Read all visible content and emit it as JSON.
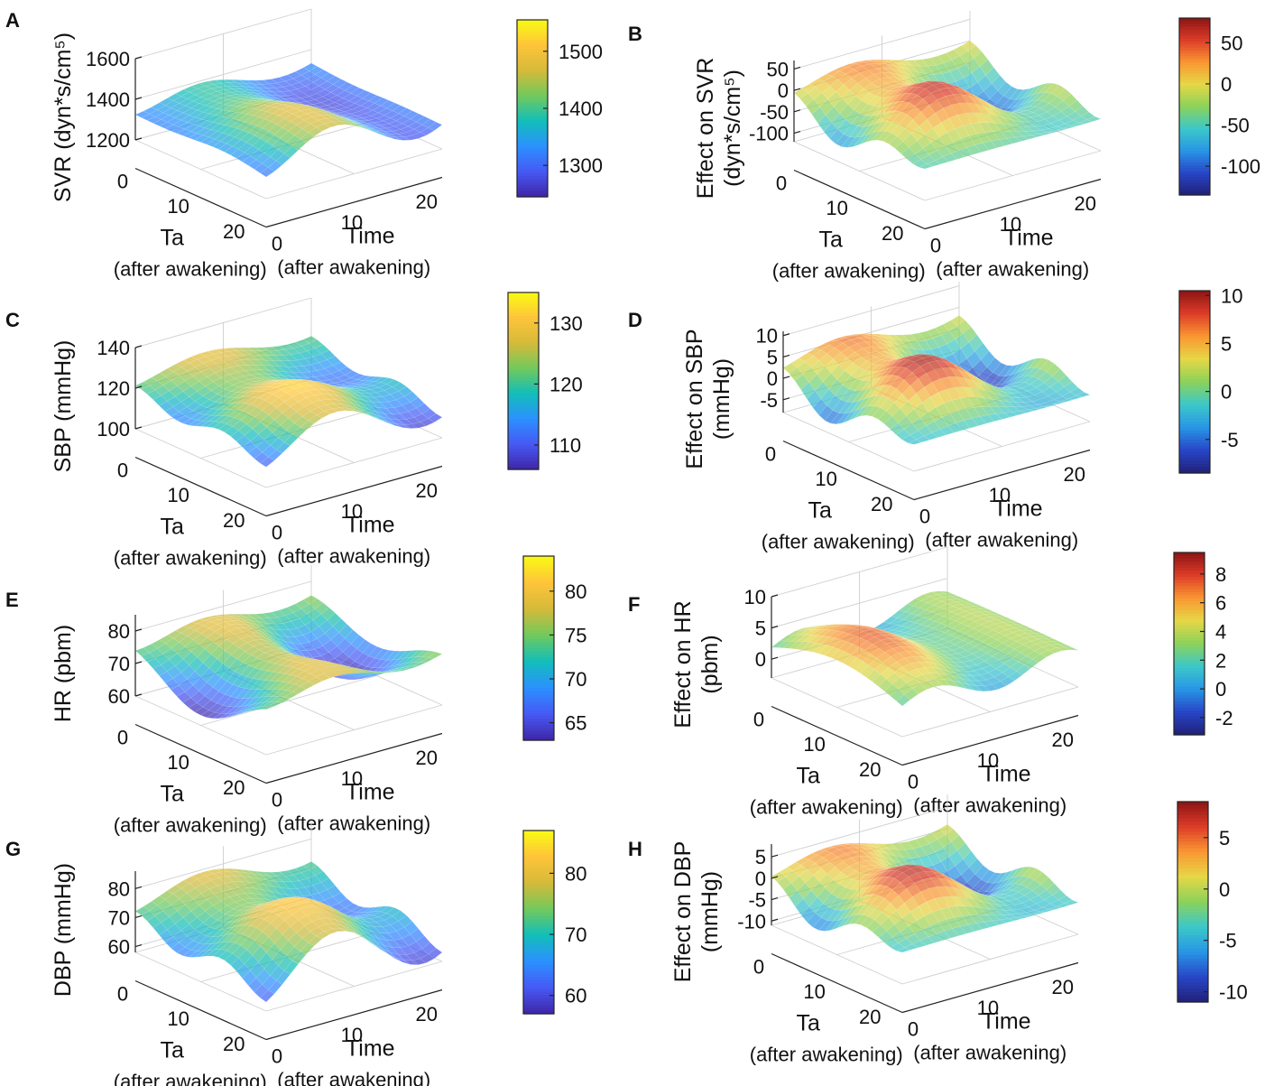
{
  "figure": {
    "panels": [
      "A",
      "B",
      "C",
      "D",
      "E",
      "F",
      "G",
      "H"
    ]
  },
  "chart_data": [
    {
      "panel": "A",
      "type": "surface",
      "colormap": "parula",
      "zlabel": "SVR (dyn*s/cm⁵)",
      "xlabel": "Ta",
      "xlabel_sub": "(after awakening)",
      "ylabel": "Time",
      "ylabel_sub": "(after awakening)",
      "zlim": [
        1200,
        1600
      ],
      "zticks": [
        "1200",
        "1400",
        "1600"
      ],
      "xticks": [
        "0",
        "10",
        "20"
      ],
      "yticks": [
        "0",
        "10",
        "20"
      ],
      "clim": [
        1245,
        1555
      ],
      "cbticks": [
        1300,
        1400,
        1500
      ],
      "base": 1360,
      "amp": 140,
      "wave": "svr"
    },
    {
      "panel": "B",
      "type": "surface",
      "colormap": "jet",
      "zlabel": "Effect on SVR",
      "zlabel2": "(dyn*s/cm⁵)",
      "xlabel": "Ta",
      "xlabel_sub": "(after awakening)",
      "ylabel": "Time",
      "ylabel_sub": "(after awakening)",
      "zlim": [
        -120,
        70
      ],
      "zticks": [
        "-100",
        "-50",
        "0",
        "50"
      ],
      "xticks": [
        "0",
        "10",
        "20"
      ],
      "yticks": [
        "0",
        "10",
        "20"
      ],
      "clim": [
        -135,
        80
      ],
      "cbticks": [
        -100,
        -50,
        0,
        50
      ],
      "base": -20,
      "amp": 85,
      "wave": "effect"
    },
    {
      "panel": "C",
      "type": "surface",
      "colormap": "parula",
      "zlabel": "SBP (mmHg)",
      "xlabel": "Ta",
      "xlabel_sub": "(after awakening)",
      "ylabel": "Time",
      "ylabel_sub": "(after awakening)",
      "zlim": [
        100,
        140
      ],
      "zticks": [
        "100",
        "120",
        "140"
      ],
      "xticks": [
        "0",
        "10",
        "20"
      ],
      "yticks": [
        "0",
        "10",
        "20"
      ],
      "clim": [
        106,
        135
      ],
      "cbticks": [
        110,
        120,
        130
      ],
      "base": 121,
      "amp": 13,
      "wave": "bp"
    },
    {
      "panel": "D",
      "type": "surface",
      "colormap": "jet",
      "zlabel": "Effect on SBP",
      "zlabel2": "(mmHg)",
      "xlabel": "Ta",
      "xlabel_sub": "(after awakening)",
      "ylabel": "Time",
      "ylabel_sub": "(after awakening)",
      "zlim": [
        -8,
        11
      ],
      "zticks": [
        "-5",
        "0",
        "5",
        "10"
      ],
      "xticks": [
        "0",
        "10",
        "20"
      ],
      "yticks": [
        "0",
        "10",
        "20"
      ],
      "clim": [
        -8.5,
        10.5
      ],
      "cbticks": [
        -5,
        0,
        5,
        10
      ],
      "base": 1,
      "amp": 9,
      "wave": "effect"
    },
    {
      "panel": "E",
      "type": "surface",
      "colormap": "parula",
      "zlabel": "HR (pbm)",
      "xlabel": "Ta",
      "xlabel_sub": "(after awakening)",
      "ylabel": "Time",
      "ylabel_sub": "(after awakening)",
      "zlim": [
        60,
        85
      ],
      "zticks": [
        "60",
        "70",
        "80"
      ],
      "xticks": [
        "0",
        "10",
        "20"
      ],
      "yticks": [
        "0",
        "10",
        "20"
      ],
      "clim": [
        63,
        84
      ],
      "cbticks": [
        65,
        70,
        75,
        80
      ],
      "base": 73,
      "amp": 10,
      "wave": "hr"
    },
    {
      "panel": "F",
      "type": "surface",
      "colormap": "jet",
      "zlabel": "Effect on HR",
      "zlabel2": "(pbm)",
      "xlabel": "Ta",
      "xlabel_sub": "(after awakening)",
      "ylabel": "Time",
      "ylabel_sub": "(after awakening)",
      "zlim": [
        -3,
        10
      ],
      "zticks": [
        "0",
        "5",
        "10"
      ],
      "xticks": [
        "0",
        "10",
        "20"
      ],
      "yticks": [
        "0",
        "10",
        "20"
      ],
      "clim": [
        -3.2,
        9.5
      ],
      "cbticks": [
        -2,
        0,
        2,
        4,
        6,
        8
      ],
      "base": 3,
      "amp": 5.5,
      "wave": "hreffect"
    },
    {
      "panel": "G",
      "type": "surface",
      "colormap": "parula",
      "zlabel": "DBP (mmHg)",
      "xlabel": "Ta",
      "xlabel_sub": "(after awakening)",
      "ylabel": "Time",
      "ylabel_sub": "(after awakening)",
      "zlim": [
        58,
        86
      ],
      "zticks": [
        "60",
        "70",
        "80"
      ],
      "xticks": [
        "0",
        "10",
        "20"
      ],
      "yticks": [
        "0",
        "10",
        "20"
      ],
      "clim": [
        57,
        87
      ],
      "cbticks": [
        60,
        70,
        80
      ],
      "base": 72,
      "amp": 13,
      "wave": "bp"
    },
    {
      "panel": "H",
      "type": "surface",
      "colormap": "jet",
      "zlabel": "Effect on DBP",
      "zlabel2": "(mmHg)",
      "xlabel": "Ta",
      "xlabel_sub": "(after awakening)",
      "ylabel": "Time",
      "ylabel_sub": "(after awakening)",
      "zlim": [
        -11,
        8
      ],
      "zticks": [
        "-10",
        "-5",
        "0",
        "5"
      ],
      "xticks": [
        "0",
        "10",
        "20"
      ],
      "yticks": [
        "0",
        "10",
        "20"
      ],
      "clim": [
        -11,
        8.5
      ],
      "cbticks": [
        -10,
        -5,
        0,
        5
      ],
      "base": -1,
      "amp": 8.5,
      "wave": "effect"
    }
  ]
}
